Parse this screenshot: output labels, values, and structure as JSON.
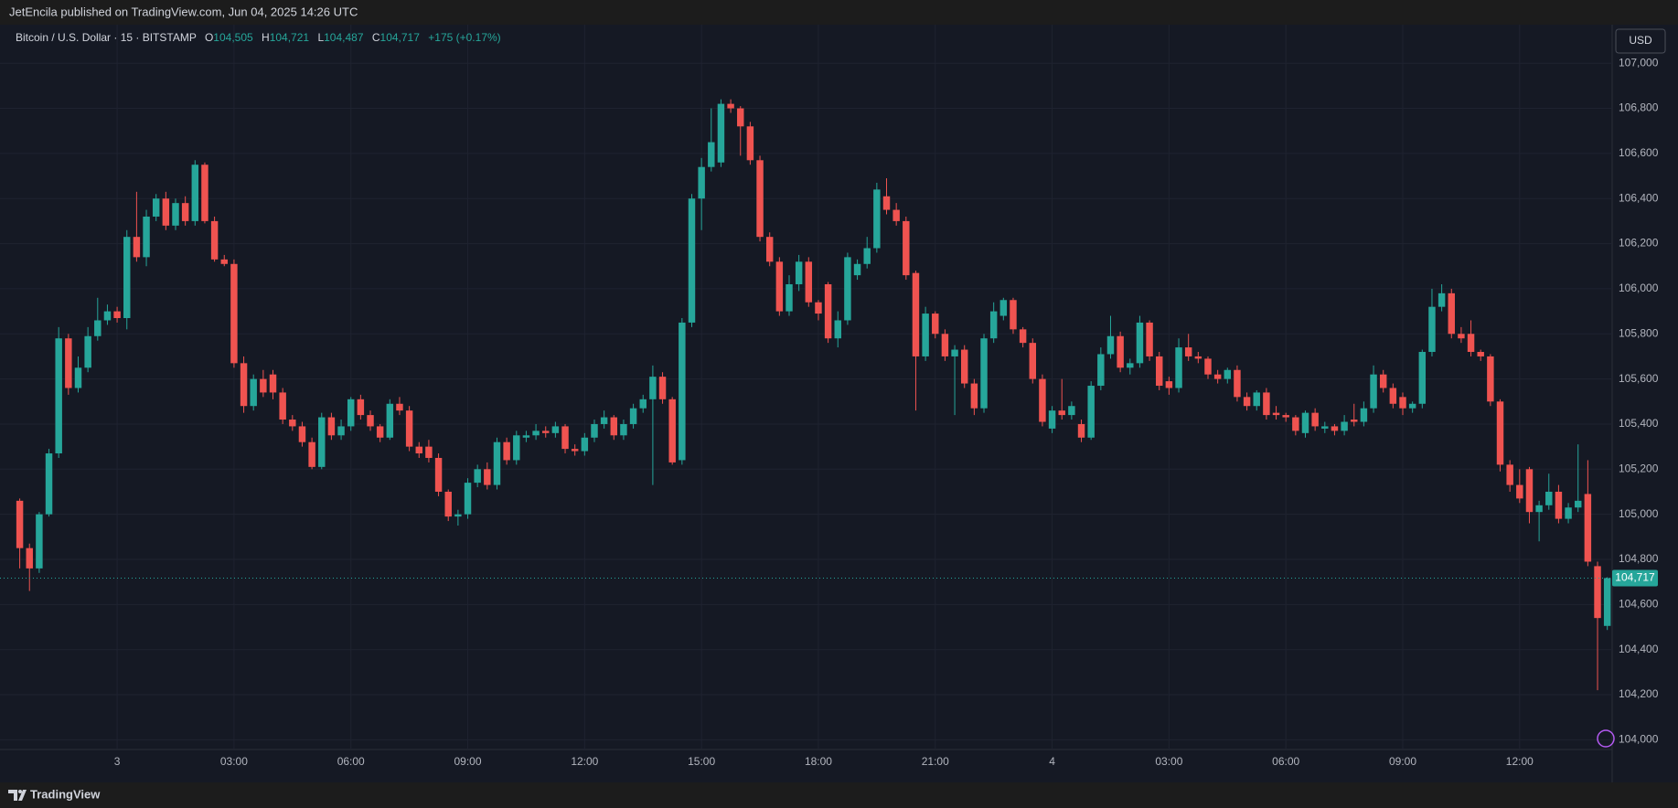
{
  "chart_data": {
    "type": "candlestick",
    "header": "JetEncila published on TradingView.com, Jun 04, 2025 14:26 UTC",
    "symbol": "Bitcoin / U.S. Dollar · 15 · BITSTAMP",
    "ohlc_legend": [
      [
        "O",
        "104,505"
      ],
      [
        "H",
        "104,721"
      ],
      [
        "L",
        "104,487"
      ],
      [
        "C",
        "104,717"
      ]
    ],
    "change": "+175 (+0.17%)",
    "currency": "USD",
    "brand": "TradingView",
    "last_price_label": "104,717",
    "up_color": "#26a69a",
    "down_color": "#ef5350",
    "grid": true,
    "xlim": [
      -0.9,
      163.5
    ],
    "xticks": [
      {
        "value": 10,
        "label": "3"
      },
      {
        "value": 22,
        "label": "03:00"
      },
      {
        "value": 34,
        "label": "06:00"
      },
      {
        "value": 46,
        "label": "09:00"
      },
      {
        "value": 58,
        "label": "12:00"
      },
      {
        "value": 70,
        "label": "15:00"
      },
      {
        "value": 82,
        "label": "18:00"
      },
      {
        "value": 94,
        "label": "21:00"
      },
      {
        "value": 106,
        "label": "4"
      },
      {
        "value": 118,
        "label": "03:00"
      },
      {
        "value": 130,
        "label": "06:00"
      },
      {
        "value": 142,
        "label": "09:00"
      },
      {
        "value": 154,
        "label": "12:00"
      }
    ],
    "ylim": [
      103957,
      107171
    ],
    "yticks": [
      {
        "value": 104000,
        "label": "104,000"
      },
      {
        "value": 104200,
        "label": "104,200"
      },
      {
        "value": 104400,
        "label": "104,400"
      },
      {
        "value": 104600,
        "label": "104,600"
      },
      {
        "value": 104800,
        "label": "104,800"
      },
      {
        "value": 105000,
        "label": "105,000"
      },
      {
        "value": 105200,
        "label": "105,200"
      },
      {
        "value": 105400,
        "label": "105,400"
      },
      {
        "value": 105600,
        "label": "105,600"
      },
      {
        "value": 105800,
        "label": "105,800"
      },
      {
        "value": 106000,
        "label": "106,000"
      },
      {
        "value": 106200,
        "label": "106,200"
      },
      {
        "value": 106400,
        "label": "106,400"
      },
      {
        "value": 106600,
        "label": "106,600"
      },
      {
        "value": 106800,
        "label": "106,800"
      },
      {
        "value": 107000,
        "label": "107,000"
      }
    ],
    "open": [
      105060,
      104850,
      104760,
      105000,
      105270,
      105780,
      105560,
      105650,
      105790,
      105860,
      105900,
      105870,
      106230,
      106140,
      106320,
      106400,
      106280,
      106380,
      106300,
      106550,
      106300,
      106130,
      106110,
      105670,
      105480,
      105600,
      105620,
      105540,
      105420,
      105390,
      105320,
      105210,
      105430,
      105350,
      105390,
      105510,
      105440,
      105390,
      105340,
      105490,
      105460,
      105300,
      105300,
      105250,
      105100,
      104990,
      105000,
      105140,
      105200,
      105130,
      105320,
      105240,
      105340,
      105350,
      105370,
      105360,
      105390,
      105290,
      105280,
      105340,
      105400,
      105430,
      105350,
      105400,
      105470,
      105510,
      105610,
      105510,
      105240,
      105850,
      106400,
      106540,
      106560,
      106820,
      106800,
      106720,
      106570,
      106230,
      106120,
      105900,
      106020,
      106120,
      105940,
      106020,
      105780,
      105860,
      106060,
      106110,
      106180,
      106410,
      106350,
      106300,
      106070,
      105700,
      105890,
      105800,
      105700,
      105730,
      105580,
      105470,
      105780,
      105880,
      105950,
      105820,
      105760,
      105600,
      105380,
      105460,
      105440,
      105400,
      105340,
      105570,
      105710,
      105790,
      105650,
      105670,
      105850,
      105700,
      105590,
      105560,
      105740,
      105700,
      105690,
      105620,
      105600,
      105640,
      105520,
      105480,
      105540,
      105450,
      105440,
      105430,
      105360,
      105450,
      105380,
      105390,
      105370,
      105420,
      105410,
      105470,
      105620,
      105560,
      105520,
      105470,
      105490,
      105720,
      105920,
      105980,
      105800,
      105800,
      105720,
      105700,
      105500,
      105220,
      105130,
      105200,
      105010,
      105040,
      105100,
      104980,
      105030,
      105090,
      104770,
      104505
    ],
    "high": [
      105070,
      104870,
      105010,
      105290,
      105830,
      105800,
      105700,
      105830,
      105960,
      105930,
      105920,
      106260,
      106430,
      106350,
      106420,
      106430,
      106400,
      106410,
      106570,
      106560,
      106320,
      106150,
      106130,
      105700,
      105620,
      105640,
      105640,
      105560,
      105440,
      105410,
      105340,
      105450,
      105450,
      105420,
      105520,
      105530,
      105460,
      105400,
      105510,
      105520,
      105480,
      105320,
      105330,
      105270,
      105110,
      105020,
      105160,
      105220,
      105230,
      105340,
      105340,
      105370,
      105370,
      105400,
      105390,
      105410,
      105400,
      105310,
      105360,
      105420,
      105460,
      105440,
      105420,
      105490,
      105530,
      105660,
      105630,
      105520,
      105870,
      106420,
      106580,
      106800,
      106840,
      106840,
      106810,
      106740,
      106590,
      106250,
      106140,
      106060,
      106150,
      106140,
      105950,
      106030,
      105900,
      106160,
      106130,
      106230,
      106470,
      106490,
      106380,
      106320,
      106080,
      105920,
      105900,
      105820,
      105750,
      105750,
      105600,
      105800,
      105940,
      105960,
      105960,
      105830,
      105780,
      105620,
      105480,
      105600,
      105500,
      105420,
      105590,
      105740,
      105880,
      105810,
      105690,
      105880,
      105860,
      105720,
      105610,
      105780,
      105800,
      105720,
      105700,
      105640,
      105650,
      105660,
      105540,
      105550,
      105560,
      105480,
      105450,
      105440,
      105460,
      105470,
      105410,
      105400,
      105440,
      105490,
      105500,
      105660,
      105640,
      105580,
      105540,
      105500,
      105730,
      106000,
      106020,
      106000,
      105830,
      105860,
      105730,
      105710,
      105510,
      105240,
      105200,
      105210,
      105060,
      105180,
      105130,
      105050,
      105310,
      105240,
      104790,
      104721
    ],
    "low": [
      104760,
      104660,
      104740,
      104990,
      105250,
      105530,
      105540,
      105630,
      105770,
      105840,
      105850,
      105820,
      106120,
      106100,
      106300,
      106260,
      106260,
      106280,
      106280,
      106290,
      106120,
      106100,
      105650,
      105450,
      105460,
      105520,
      105510,
      105400,
      105370,
      105300,
      105200,
      105200,
      105330,
      105330,
      105370,
      105420,
      105370,
      105320,
      105330,
      105440,
      105280,
      105250,
      105230,
      105080,
      104970,
      104950,
      104980,
      105120,
      105110,
      105110,
      105220,
      105220,
      105320,
      105330,
      105340,
      105340,
      105270,
      105260,
      105260,
      105320,
      105380,
      105330,
      105330,
      105380,
      105450,
      105130,
      105490,
      105220,
      105220,
      105830,
      106260,
      106520,
      106540,
      106780,
      106590,
      106550,
      106210,
      106100,
      105880,
      105880,
      105990,
      105920,
      105860,
      105760,
      105740,
      105840,
      106040,
      106090,
      106160,
      106330,
      106280,
      106040,
      105460,
      105680,
      105780,
      105680,
      105440,
      105560,
      105440,
      105450,
      105760,
      105860,
      105800,
      105740,
      105580,
      105390,
      105360,
      105420,
      105420,
      105320,
      105330,
      105550,
      105690,
      105630,
      105620,
      105650,
      105680,
      105550,
      105530,
      105540,
      105680,
      105670,
      105600,
      105580,
      105580,
      105500,
      105460,
      105460,
      105420,
      105420,
      105410,
      105350,
      105340,
      105370,
      105360,
      105350,
      105350,
      105390,
      105390,
      105450,
      105540,
      105470,
      105440,
      105450,
      105470,
      105700,
      105900,
      105780,
      105760,
      105700,
      105680,
      105480,
      105190,
      105100,
      105050,
      104960,
      104880,
      105020,
      104960,
      104960,
      105010,
      104770,
      104220,
      104487
    ],
    "close": [
      104850,
      104760,
      105000,
      105270,
      105780,
      105560,
      105650,
      105790,
      105860,
      105900,
      105870,
      106230,
      106140,
      106320,
      106400,
      106280,
      106380,
      106300,
      106550,
      106300,
      106130,
      106110,
      105670,
      105480,
      105600,
      105540,
      105540,
      105420,
      105390,
      105320,
      105210,
      105430,
      105350,
      105390,
      105510,
      105440,
      105390,
      105340,
      105490,
      105460,
      105300,
      105270,
      105250,
      105100,
      104990,
      105000,
      105140,
      105200,
      105130,
      105320,
      105240,
      105350,
      105350,
      105370,
      105360,
      105390,
      105290,
      105280,
      105340,
      105400,
      105430,
      105350,
      105400,
      105470,
      105510,
      105610,
      105510,
      105230,
      105850,
      106400,
      106540,
      106650,
      106820,
      106800,
      106720,
      106570,
      106230,
      106120,
      105900,
      106020,
      106120,
      105940,
      105890,
      105780,
      105860,
      106140,
      106110,
      106180,
      106440,
      106350,
      106300,
      106060,
      105700,
      105890,
      105800,
      105700,
      105730,
      105580,
      105470,
      105780,
      105900,
      105950,
      105820,
      105760,
      105600,
      105410,
      105460,
      105440,
      105480,
      105340,
      105570,
      105710,
      105790,
      105650,
      105670,
      105850,
      105700,
      105570,
      105560,
      105740,
      105700,
      105690,
      105620,
      105600,
      105640,
      105520,
      105480,
      105540,
      105440,
      105440,
      105430,
      105370,
      105450,
      105390,
      105390,
      105370,
      105410,
      105410,
      105470,
      105620,
      105560,
      105490,
      105470,
      105490,
      105720,
      105920,
      105980,
      105800,
      105780,
      105720,
      105700,
      105500,
      105220,
      105130,
      105070,
      105010,
      105040,
      105100,
      104980,
      105030,
      105060,
      104790,
      104540,
      104717
    ]
  }
}
